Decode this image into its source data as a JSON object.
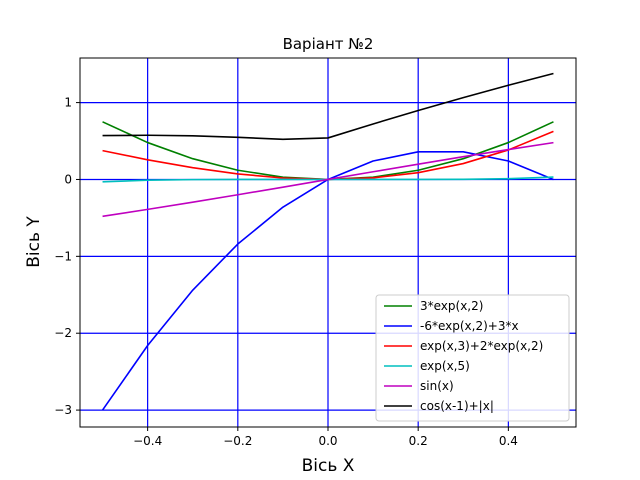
{
  "chart_data": {
    "type": "line",
    "title": "Варіант №2",
    "xlabel": "Вісь X",
    "ylabel": "Вісь Y",
    "xlim": [
      -0.55,
      0.55
    ],
    "ylim": [
      -3.22,
      1.58
    ],
    "grid": true,
    "grid_color": "#0000ff",
    "legend_position": "lower right",
    "x_ticks": [
      {
        "value": -0.4,
        "label": "−0.4"
      },
      {
        "value": -0.2,
        "label": "−0.2"
      },
      {
        "value": 0.0,
        "label": "0.0"
      },
      {
        "value": 0.2,
        "label": "0.2"
      },
      {
        "value": 0.4,
        "label": "0.4"
      }
    ],
    "y_ticks": [
      {
        "value": -3,
        "label": "−3"
      },
      {
        "value": -2,
        "label": "−2"
      },
      {
        "value": -1,
        "label": "−1"
      },
      {
        "value": 0,
        "label": "0"
      },
      {
        "value": 1,
        "label": "1"
      }
    ],
    "x": [
      -0.5,
      -0.4,
      -0.3,
      -0.2,
      -0.1,
      0.0,
      0.1,
      0.2,
      0.3,
      0.4,
      0.5
    ],
    "series": [
      {
        "name": "3*exp(x,2)",
        "color": "#008000",
        "values": [
          0.75,
          0.48,
          0.27,
          0.12,
          0.03,
          0.0,
          0.03,
          0.12,
          0.27,
          0.48,
          0.75
        ]
      },
      {
        "name": "-6*exp(x,2)+3*x",
        "color": "#0000ff",
        "values": [
          -3.0,
          -2.16,
          -1.44,
          -0.84,
          -0.36,
          0.0,
          0.24,
          0.36,
          0.36,
          0.24,
          0.0
        ]
      },
      {
        "name": "exp(x,3)+2*exp(x,2)",
        "color": "#ff0000",
        "values": [
          0.375,
          0.256,
          0.153,
          0.072,
          0.019,
          0.0,
          0.021,
          0.088,
          0.207,
          0.384,
          0.625
        ]
      },
      {
        "name": "exp(x,5)",
        "color": "#00bfbf",
        "values": [
          -0.031,
          -0.01,
          -0.002,
          0.0,
          0.0,
          0.0,
          0.0,
          0.0,
          0.002,
          0.01,
          0.031
        ]
      },
      {
        "name": "sin(x)",
        "color": "#bf00bf",
        "values": [
          -0.479,
          -0.389,
          -0.296,
          -0.199,
          -0.1,
          0.0,
          0.1,
          0.199,
          0.296,
          0.389,
          0.479
        ]
      },
      {
        "name": "cos(x-1)+|x|",
        "color": "#000000",
        "values": [
          0.571,
          0.575,
          0.568,
          0.548,
          0.522,
          0.54,
          0.722,
          0.897,
          1.065,
          1.225,
          1.378
        ]
      }
    ]
  }
}
